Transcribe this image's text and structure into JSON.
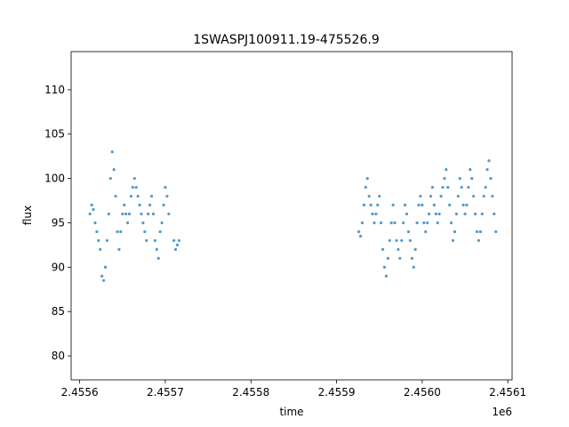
{
  "chart_data": {
    "type": "scatter",
    "title": "1SWASPJ100911.19-475526.9",
    "xlabel": "time",
    "ylabel": "flux",
    "x_offset_label": "1e6",
    "xlim": [
      2455590,
      2456105
    ],
    "ylim": [
      77.3,
      114.3
    ],
    "x_ticks": [
      2455600,
      2455700,
      2455800,
      2455900,
      2456000,
      2456100
    ],
    "x_tick_labels": [
      "2.4556",
      "2.4557",
      "2.4558",
      "2.4559",
      "2.4560",
      "2.4561"
    ],
    "y_ticks": [
      80,
      85,
      90,
      95,
      100,
      105,
      110
    ],
    "y_tick_labels": [
      "80",
      "85",
      "90",
      "95",
      "100",
      "105",
      "110"
    ],
    "grid": false,
    "point_color": "#1f77b4",
    "series": [
      {
        "segment": 1,
        "x": [
          2455612,
          2455614,
          2455616,
          2455618,
          2455620,
          2455622,
          2455624,
          2455626,
          2455628,
          2455630,
          2455632,
          2455634,
          2455636,
          2455638,
          2455640,
          2455642,
          2455644,
          2455646,
          2455648,
          2455650,
          2455652,
          2455654,
          2455656,
          2455658,
          2455660,
          2455662,
          2455664,
          2455666,
          2455668,
          2455670,
          2455672,
          2455674,
          2455676,
          2455678,
          2455680,
          2455682,
          2455684,
          2455686,
          2455688,
          2455690,
          2455692,
          2455694,
          2455696,
          2455698,
          2455700,
          2455702,
          2455704,
          2455710,
          2455712,
          2455714,
          2455716
        ],
        "y": [
          96,
          97,
          96.5,
          95,
          94,
          93,
          92,
          89,
          88.5,
          90,
          93,
          96,
          100,
          103,
          101,
          98,
          94,
          92,
          94,
          96,
          97,
          96,
          95,
          96,
          98,
          99,
          100,
          99,
          98,
          97,
          96,
          95,
          94,
          93,
          96,
          97,
          98,
          96,
          93,
          92,
          91,
          94,
          95,
          97,
          99,
          98,
          96,
          93,
          92,
          92.5,
          93
        ]
      },
      {
        "segment": 2,
        "x": [
          2455926,
          2455928,
          2455930,
          2455932,
          2455934,
          2455936,
          2455938,
          2455940,
          2455942,
          2455944,
          2455946,
          2455948,
          2455950,
          2455952,
          2455954,
          2455956,
          2455958,
          2455960,
          2455962,
          2455964,
          2455966,
          2455968,
          2455970,
          2455972,
          2455974,
          2455976,
          2455978,
          2455980,
          2455982,
          2455984,
          2455986,
          2455988,
          2455990,
          2455992,
          2455994,
          2455996,
          2455998,
          2456000,
          2456002,
          2456004,
          2456006,
          2456008,
          2456010,
          2456012,
          2456014,
          2456016,
          2456018,
          2456020,
          2456022,
          2456024,
          2456026,
          2456028,
          2456030,
          2456032,
          2456034,
          2456036,
          2456038,
          2456040,
          2456042,
          2456044,
          2456046,
          2456048,
          2456050,
          2456052,
          2456054,
          2456056,
          2456058,
          2456060,
          2456062,
          2456064,
          2456066,
          2456068,
          2456070,
          2456072,
          2456074,
          2456076,
          2456078,
          2456080,
          2456082,
          2456084,
          2456086
        ],
        "y": [
          94,
          93.5,
          95,
          97,
          99,
          100,
          98,
          97,
          96,
          95,
          96,
          97,
          98,
          95,
          92,
          90,
          89,
          91,
          93,
          95,
          97,
          95,
          93,
          92,
          91,
          93,
          95,
          97,
          96,
          94,
          93,
          91,
          90,
          92,
          95,
          97,
          98,
          97,
          95,
          94,
          95,
          96,
          98,
          99,
          97,
          96,
          95,
          96,
          98,
          99,
          100,
          101,
          99,
          97,
          95,
          93,
          94,
          96,
          98,
          100,
          99,
          97,
          96,
          97,
          99,
          101,
          100,
          98,
          96,
          94,
          93,
          94,
          96,
          98,
          99,
          101,
          102,
          100,
          98,
          96,
          94
        ]
      }
    ]
  }
}
